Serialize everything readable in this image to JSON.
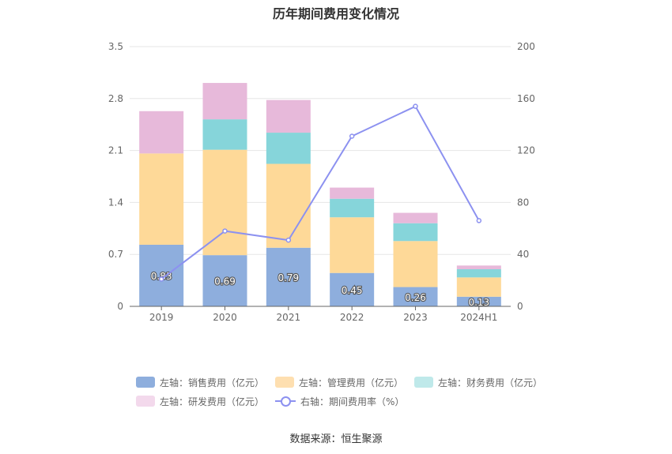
{
  "chart_data": {
    "type": "bar",
    "title": "历年期间费用变化情况",
    "categories": [
      "2019",
      "2020",
      "2021",
      "2022",
      "2023",
      "2024H1"
    ],
    "stacked": true,
    "left_axis": {
      "ticks": [
        "0",
        "0.7",
        "1.4",
        "2.1",
        "2.8",
        "3.5"
      ],
      "ylim": [
        0,
        3.5
      ]
    },
    "right_axis": {
      "ticks": [
        "0",
        "40",
        "80",
        "120",
        "160",
        "200"
      ],
      "ylim": [
        0,
        200
      ]
    },
    "series": [
      {
        "name": "左轴：销售费用（亿元）",
        "axis": "left",
        "type": "bar",
        "color": "#8eaedd",
        "values": [
          0.83,
          0.69,
          0.79,
          0.45,
          0.26,
          0.13
        ],
        "labels": [
          "0.83",
          "0.69",
          "0.79",
          "0.45",
          "0.26",
          "0.13"
        ]
      },
      {
        "name": "左轴：管理费用（亿元）",
        "axis": "left",
        "type": "bar",
        "color": "#fed998",
        "values": [
          1.23,
          1.42,
          1.13,
          0.75,
          0.62,
          0.26
        ]
      },
      {
        "name": "左轴：财务费用（亿元）",
        "axis": "left",
        "type": "bar",
        "color": "#86d5da",
        "values": [
          0.0,
          0.41,
          0.42,
          0.25,
          0.24,
          0.11
        ]
      },
      {
        "name": "左轴：研发费用（亿元）",
        "axis": "left",
        "type": "bar",
        "color": "#e7b9da",
        "values": [
          0.57,
          0.49,
          0.44,
          0.15,
          0.14,
          0.05
        ]
      },
      {
        "name": "右轴：期间费用率（%）",
        "axis": "right",
        "type": "line",
        "color": "#8c91f0",
        "values": [
          21,
          58,
          51,
          131,
          154,
          66
        ]
      }
    ],
    "legend_position": "bottom",
    "grid": true
  },
  "legend_items": [
    {
      "label": "左轴：销售费用（亿元）",
      "color": "#8eaedd"
    },
    {
      "label": "左轴：管理费用（亿元）",
      "color": "#fedfb0"
    },
    {
      "label": "左轴：财务费用（亿元）",
      "color": "#bfe9ea"
    },
    {
      "label": "左轴：研发费用（亿元）",
      "color": "#f3d9ec"
    },
    {
      "label": "右轴：期间费用率（%）",
      "color": "#8c91f0"
    }
  ],
  "source": "数据来源：恒生聚源"
}
